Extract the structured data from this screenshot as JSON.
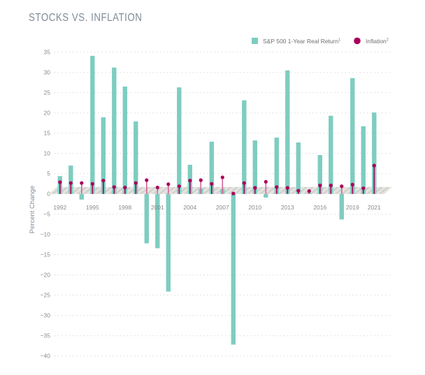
{
  "chart_data": {
    "type": "bar",
    "title": "STOCKS VS. INFLATION",
    "xlabel": "",
    "ylabel": "Percent Change",
    "ylim": [
      -40,
      35
    ],
    "yticks": [
      35,
      30,
      25,
      20,
      15,
      10,
      5,
      0,
      -5,
      -10,
      -15,
      -20,
      -25,
      -30,
      -35,
      -40
    ],
    "ytick_labels": [
      "35",
      "30",
      "25",
      "20",
      "15",
      "10",
      "5",
      "0",
      "−5",
      "−10",
      "−15",
      "−20",
      "−25",
      "−30",
      "−35",
      "−40"
    ],
    "grid": true,
    "legend_position": "top-right",
    "categories": [
      1992,
      1993,
      1994,
      1995,
      1996,
      1997,
      1998,
      1999,
      2000,
      2001,
      2002,
      2003,
      2004,
      2005,
      2006,
      2007,
      2008,
      2009,
      2010,
      2011,
      2012,
      2013,
      2014,
      2015,
      2016,
      2017,
      2018,
      2019,
      2020,
      2021
    ],
    "xtick_labels": [
      "1992",
      "1995",
      "1998",
      "2001",
      "2004",
      "2007",
      "2010",
      "2013",
      "2016",
      "2019",
      "2021"
    ],
    "series": [
      {
        "name": "S&P 500 1-Year Real Return",
        "superscript": "1",
        "kind": "bar",
        "color": "#7ecdc0",
        "values": [
          4.4,
          7.0,
          -1.4,
          34.1,
          18.9,
          31.2,
          26.5,
          17.9,
          -12.2,
          -13.4,
          -24.1,
          26.3,
          7.2,
          1.3,
          12.9,
          1.2,
          -37.2,
          23.1,
          13.2,
          -0.9,
          13.9,
          30.5,
          12.7,
          0.3,
          9.6,
          19.3,
          -6.3,
          28.6,
          16.7,
          20.1
        ]
      },
      {
        "name": "Inflation",
        "superscript": "2",
        "kind": "lollipop",
        "color": "#a8005a",
        "values": [
          2.9,
          2.7,
          2.7,
          2.5,
          3.3,
          1.7,
          1.6,
          2.7,
          3.4,
          1.6,
          2.4,
          1.9,
          3.3,
          3.4,
          2.5,
          4.1,
          0.1,
          2.7,
          1.5,
          3.0,
          1.7,
          1.5,
          0.8,
          0.7,
          2.1,
          2.1,
          1.9,
          2.3,
          1.4,
          7.0
        ]
      }
    ]
  },
  "legend": [
    {
      "label": "S&P 500 1-Year Real Return",
      "sup": "1",
      "color": "#7ecdc0",
      "shape": "square"
    },
    {
      "label": "Inflation",
      "sup": "2",
      "color": "#a8005a",
      "shape": "circle"
    }
  ],
  "colors": {
    "floor": "#e4e3e0",
    "floor_stripe": "#cfcdc9",
    "grid": "#c8c8c8",
    "stem_light": "#d8609a"
  }
}
